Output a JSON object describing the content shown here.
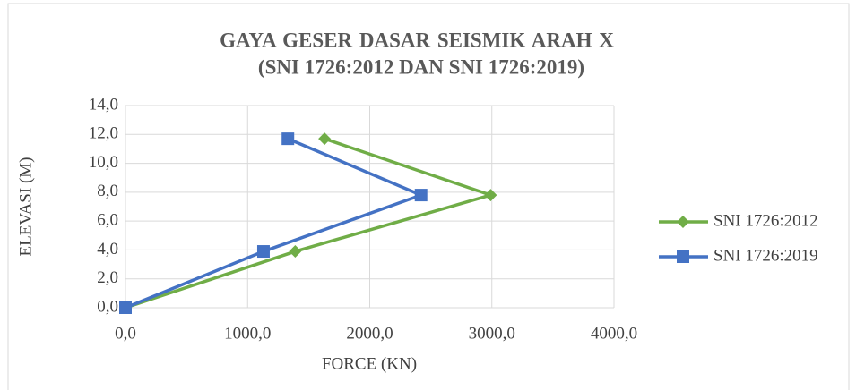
{
  "chart_data": {
    "type": "line",
    "title": "GAYA GESER DASAR SEISMIK ARAH X",
    "subtitle": "(SNI 1726:2012 DAN SNI 1726:2019)",
    "x_label": "FORCE (KN)",
    "y_label": "ELEVASI (M)",
    "series": [
      {
        "name": "SNI 1726:2012",
        "color": "#70ad47",
        "marker": "diamond",
        "x": [
          0,
          1390,
          2990,
          1630
        ],
        "values": [
          0,
          3.9,
          7.8,
          11.7
        ]
      },
      {
        "name": "SNI 1726:2019",
        "color": "#4472c4",
        "marker": "square",
        "x": [
          0,
          1130,
          2420,
          1330
        ],
        "values": [
          0,
          3.9,
          7.8,
          11.7
        ]
      }
    ],
    "xlim": [
      0,
      4000
    ],
    "xticks": [
      {
        "value": 0,
        "label": "0,0"
      },
      {
        "value": 1000,
        "label": "1000,0"
      },
      {
        "value": 2000,
        "label": "2000,0"
      },
      {
        "value": 3000,
        "label": "3000,0"
      },
      {
        "value": 4000,
        "label": "4000,0"
      }
    ],
    "ylim": [
      0,
      14
    ],
    "yticks": [
      {
        "value": 0,
        "label": "0,0"
      },
      {
        "value": 2,
        "label": "2,0"
      },
      {
        "value": 4,
        "label": "4,0"
      },
      {
        "value": 6,
        "label": "6,0"
      },
      {
        "value": 8,
        "label": "8,0"
      },
      {
        "value": 10,
        "label": "10,0"
      },
      {
        "value": 12,
        "label": "12,0"
      },
      {
        "value": 14,
        "label": "14,0"
      }
    ],
    "grid": true,
    "legend": "right"
  }
}
